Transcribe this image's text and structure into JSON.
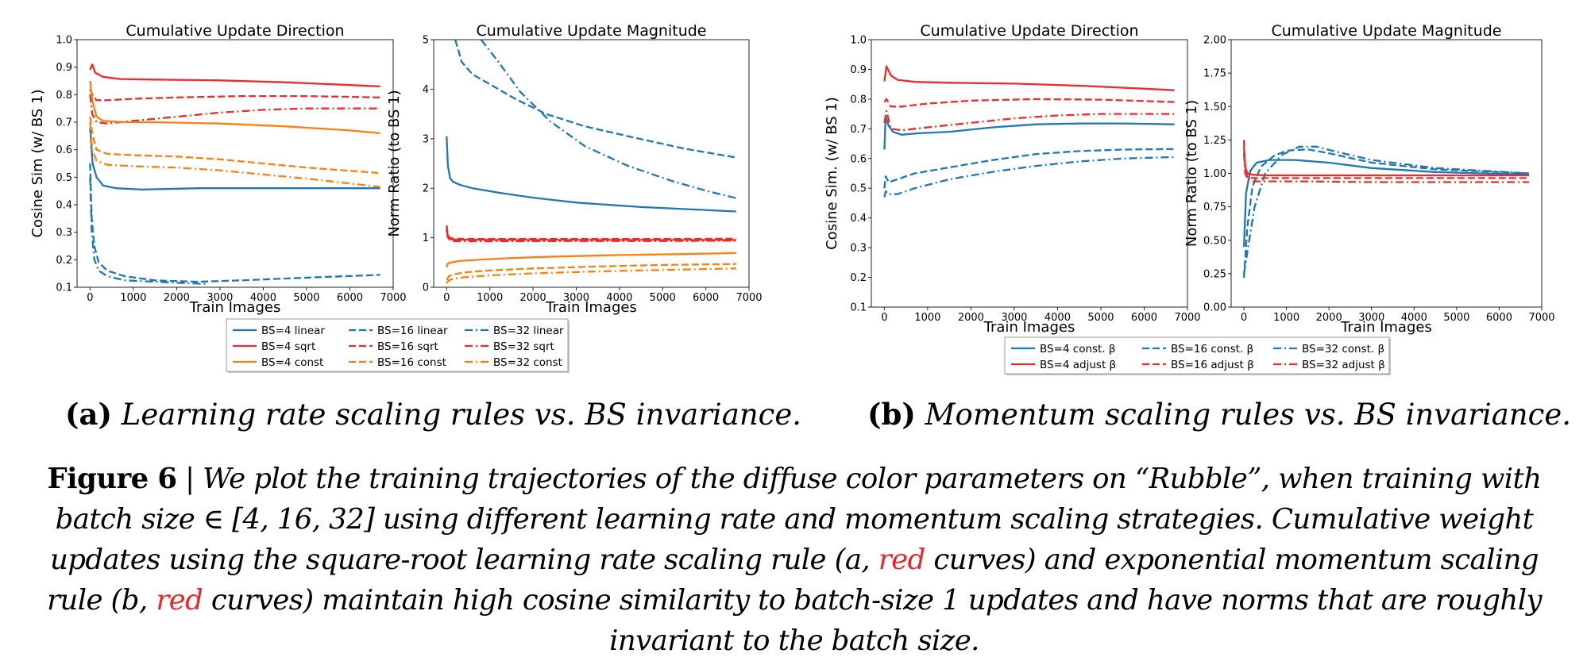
{
  "colors": {
    "blue": "#1f77b4",
    "red": "#ee2a2a",
    "orange": "#ff7f0e"
  },
  "chart_data": [
    {
      "id": "a1",
      "type": "line",
      "title": "Cumulative Update Direction",
      "xlabel": "Train Images",
      "ylabel": "Cosine Sim (w/ BS 1)",
      "xlim": [
        -300,
        7000
      ],
      "ylim": [
        0.1,
        1.0
      ],
      "xticks": [
        0,
        1000,
        2000,
        3000,
        4000,
        5000,
        6000,
        7000
      ],
      "yticks": [
        0.1,
        0.2,
        0.3,
        0.4,
        0.5,
        0.6,
        0.7,
        0.8,
        0.9,
        1.0
      ],
      "ytick_labels": [
        "0.1",
        "0.2",
        "0.3",
        "0.4",
        "0.5",
        "0.6",
        "0.7",
        "0.8",
        "0.9",
        "1.0"
      ],
      "series": [
        {
          "name": "BS=4 linear",
          "color": "blue",
          "dash": "solid",
          "x": [
            0,
            60,
            150,
            300,
            600,
            1200,
            2500,
            4000,
            5500,
            6700
          ],
          "y": [
            0.68,
            0.55,
            0.5,
            0.47,
            0.46,
            0.455,
            0.46,
            0.46,
            0.46,
            0.46
          ]
        },
        {
          "name": "BS=16 linear",
          "color": "blue",
          "dash": "dash",
          "x": [
            0,
            40,
            100,
            200,
            400,
            800,
            1500,
            2500,
            3500,
            5000,
            6700
          ],
          "y": [
            0.55,
            0.35,
            0.25,
            0.19,
            0.16,
            0.14,
            0.125,
            0.12,
            0.125,
            0.135,
            0.145
          ]
        },
        {
          "name": "BS=32 linear",
          "color": "blue",
          "dash": "dashdot",
          "x": [
            0,
            40,
            100,
            200,
            400,
            800,
            1500,
            2200,
            2700
          ],
          "y": [
            0.5,
            0.3,
            0.2,
            0.16,
            0.14,
            0.125,
            0.12,
            0.115,
            0.112
          ]
        },
        {
          "name": "BS=4 sqrt",
          "color": "red",
          "dash": "solid",
          "x": [
            0,
            50,
            120,
            300,
            700,
            1500,
            3000,
            4500,
            6000,
            6700
          ],
          "y": [
            0.89,
            0.91,
            0.88,
            0.865,
            0.857,
            0.855,
            0.852,
            0.845,
            0.835,
            0.83
          ]
        },
        {
          "name": "BS=16 sqrt",
          "color": "red",
          "dash": "dash",
          "x": [
            0,
            50,
            150,
            400,
            1000,
            2000,
            3500,
            5000,
            6700
          ],
          "y": [
            0.82,
            0.8,
            0.78,
            0.78,
            0.785,
            0.79,
            0.795,
            0.795,
            0.79
          ]
        },
        {
          "name": "BS=32 sqrt",
          "color": "red",
          "dash": "dashdot",
          "x": [
            0,
            50,
            150,
            400,
            1000,
            2000,
            3000,
            4000,
            5000,
            6700
          ],
          "y": [
            0.8,
            0.73,
            0.7,
            0.695,
            0.705,
            0.72,
            0.735,
            0.745,
            0.75,
            0.75
          ]
        },
        {
          "name": "BS=4 const",
          "color": "orange",
          "dash": "solid",
          "x": [
            0,
            50,
            150,
            300,
            800,
            1500,
            3000,
            4500,
            6000,
            6700
          ],
          "y": [
            0.85,
            0.78,
            0.72,
            0.705,
            0.7,
            0.7,
            0.695,
            0.685,
            0.67,
            0.66
          ]
        },
        {
          "name": "BS=16 const",
          "color": "orange",
          "dash": "dash",
          "x": [
            0,
            50,
            150,
            400,
            1000,
            2000,
            3000,
            4000,
            5000,
            6700
          ],
          "y": [
            0.72,
            0.66,
            0.6,
            0.585,
            0.58,
            0.575,
            0.565,
            0.55,
            0.535,
            0.515
          ]
        },
        {
          "name": "BS=32 const",
          "color": "orange",
          "dash": "dashdot",
          "x": [
            0,
            50,
            150,
            400,
            1000,
            2000,
            3000,
            4000,
            5000,
            6700
          ],
          "y": [
            0.7,
            0.6,
            0.56,
            0.545,
            0.54,
            0.535,
            0.525,
            0.51,
            0.495,
            0.465
          ]
        }
      ]
    },
    {
      "id": "a2",
      "type": "line",
      "title": "Cumulative Update Magnitude",
      "xlabel": "Train Images",
      "ylabel": "Norm Ratio (to BS 1)",
      "xlim": [
        -300,
        7000
      ],
      "ylim": [
        0,
        5
      ],
      "xticks": [
        0,
        1000,
        2000,
        3000,
        4000,
        5000,
        6000,
        7000
      ],
      "yticks": [
        0,
        1,
        2,
        3,
        4,
        5
      ],
      "ytick_labels": [
        "0",
        "1",
        "2",
        "3",
        "4",
        "5"
      ],
      "series": [
        {
          "name": "BS=4 linear",
          "color": "blue",
          "dash": "solid",
          "x": [
            0,
            30,
            80,
            150,
            300,
            600,
            1200,
            2000,
            3000,
            4500,
            6700
          ],
          "y": [
            3.05,
            2.45,
            2.2,
            2.13,
            2.07,
            2.0,
            1.91,
            1.81,
            1.71,
            1.62,
            1.53
          ]
        },
        {
          "name": "BS=16 linear",
          "color": "blue",
          "dash": "dash",
          "x": [
            200,
            350,
            600,
            1000,
            1600,
            2300,
            3200,
            4200,
            5500,
            6700
          ],
          "y": [
            5.0,
            4.55,
            4.3,
            4.1,
            3.8,
            3.5,
            3.25,
            3.05,
            2.8,
            2.62
          ]
        },
        {
          "name": "BS=32 linear",
          "color": "blue",
          "dash": "dashdot",
          "x": [
            800,
            1200,
            1700,
            2400,
            3200,
            4200,
            5200,
            6000,
            6700
          ],
          "y": [
            5.0,
            4.55,
            3.95,
            3.35,
            2.85,
            2.45,
            2.15,
            1.95,
            1.8
          ]
        },
        {
          "name": "BS=4 sqrt",
          "color": "red",
          "dash": "solid",
          "x": [
            0,
            30,
            80,
            200,
            500,
            1500,
            3000,
            5000,
            6700
          ],
          "y": [
            1.15,
            1.0,
            0.97,
            0.96,
            0.96,
            0.955,
            0.955,
            0.955,
            0.955
          ]
        },
        {
          "name": "BS=16 sqrt",
          "color": "red",
          "dash": "dash",
          "x": [
            0,
            30,
            80,
            200,
            500,
            1500,
            3000,
            5000,
            6700
          ],
          "y": [
            1.25,
            1.05,
            0.99,
            0.98,
            0.975,
            0.975,
            0.975,
            0.975,
            0.98
          ]
        },
        {
          "name": "BS=32 sqrt",
          "color": "red",
          "dash": "dashdot",
          "x": [
            0,
            30,
            80,
            200,
            500,
            1500,
            3000,
            5000,
            6700
          ],
          "y": [
            1.2,
            1.02,
            0.95,
            0.93,
            0.93,
            0.93,
            0.935,
            0.935,
            0.94
          ]
        },
        {
          "name": "BS=4 const",
          "color": "orange",
          "dash": "solid",
          "x": [
            0,
            30,
            100,
            300,
            800,
            1500,
            2500,
            4000,
            5500,
            6700
          ],
          "y": [
            0.4,
            0.48,
            0.5,
            0.53,
            0.56,
            0.59,
            0.62,
            0.65,
            0.67,
            0.69
          ]
        },
        {
          "name": "BS=16 const",
          "color": "orange",
          "dash": "dash",
          "x": [
            0,
            50,
            150,
            400,
            1000,
            2000,
            3500,
            5000,
            6700
          ],
          "y": [
            0.15,
            0.22,
            0.26,
            0.3,
            0.34,
            0.38,
            0.42,
            0.45,
            0.47
          ]
        },
        {
          "name": "BS=32 const",
          "color": "orange",
          "dash": "dashdot",
          "x": [
            0,
            50,
            150,
            400,
            1000,
            2000,
            3500,
            5000,
            6700
          ],
          "y": [
            0.08,
            0.14,
            0.17,
            0.2,
            0.24,
            0.28,
            0.32,
            0.35,
            0.38
          ]
        }
      ]
    },
    {
      "id": "b1",
      "type": "line",
      "title": "Cumulative Update Direction",
      "xlabel": "Train Images",
      "ylabel": "Cosine Sim. (w/ BS 1)",
      "xlim": [
        -300,
        7000
      ],
      "ylim": [
        0.1,
        1.0
      ],
      "xticks": [
        0,
        1000,
        2000,
        3000,
        4000,
        5000,
        6000,
        7000
      ],
      "yticks": [
        0.1,
        0.2,
        0.3,
        0.4,
        0.5,
        0.6,
        0.7,
        0.8,
        0.9,
        1.0
      ],
      "ytick_labels": [
        "0.1",
        "0.2",
        "0.3",
        "0.4",
        "0.5",
        "0.6",
        "0.7",
        "0.8",
        "0.9",
        "1.0"
      ],
      "series": [
        {
          "name": "BS=4 const. β",
          "color": "blue",
          "dash": "solid",
          "x": [
            0,
            30,
            100,
            200,
            400,
            800,
            1500,
            2500,
            3500,
            4500,
            5500,
            6700
          ],
          "y": [
            0.63,
            0.74,
            0.71,
            0.69,
            0.68,
            0.685,
            0.69,
            0.705,
            0.715,
            0.718,
            0.718,
            0.715
          ]
        },
        {
          "name": "BS=16 const. β",
          "color": "blue",
          "dash": "dash",
          "x": [
            0,
            30,
            100,
            300,
            700,
            1500,
            2500,
            3500,
            4500,
            5500,
            6700
          ],
          "y": [
            0.5,
            0.54,
            0.52,
            0.53,
            0.55,
            0.57,
            0.595,
            0.615,
            0.625,
            0.63,
            0.632
          ]
        },
        {
          "name": "BS=32 const. β",
          "color": "blue",
          "dash": "dashdot",
          "x": [
            0,
            30,
            100,
            300,
            700,
            1500,
            2500,
            3500,
            4500,
            5500,
            6700
          ],
          "y": [
            0.47,
            0.49,
            0.48,
            0.48,
            0.5,
            0.53,
            0.555,
            0.575,
            0.59,
            0.6,
            0.605
          ]
        },
        {
          "name": "BS=4 adjust β",
          "color": "red",
          "dash": "solid",
          "x": [
            0,
            50,
            150,
            300,
            700,
            1500,
            3000,
            4500,
            6000,
            6700
          ],
          "y": [
            0.86,
            0.91,
            0.88,
            0.865,
            0.858,
            0.855,
            0.852,
            0.845,
            0.835,
            0.83
          ]
        },
        {
          "name": "BS=16 adjust β",
          "color": "red",
          "dash": "dash",
          "x": [
            0,
            50,
            150,
            400,
            1000,
            2000,
            3500,
            5000,
            6700
          ],
          "y": [
            0.79,
            0.8,
            0.775,
            0.775,
            0.785,
            0.795,
            0.8,
            0.798,
            0.79
          ]
        },
        {
          "name": "BS=32 adjust β",
          "color": "red",
          "dash": "dashdot",
          "x": [
            0,
            50,
            150,
            400,
            1000,
            2000,
            3000,
            4000,
            5000,
            6700
          ],
          "y": [
            0.72,
            0.76,
            0.7,
            0.695,
            0.705,
            0.72,
            0.735,
            0.745,
            0.75,
            0.75
          ]
        }
      ]
    },
    {
      "id": "b2",
      "type": "line",
      "title": "Cumulative Update Magnitude",
      "xlabel": "Train Images",
      "ylabel": "Norm Ratio (to BS 1)",
      "xlim": [
        -300,
        7000
      ],
      "ylim": [
        0,
        2
      ],
      "xticks": [
        0,
        1000,
        2000,
        3000,
        4000,
        5000,
        6000,
        7000
      ],
      "yticks": [
        0,
        0.25,
        0.5,
        0.75,
        1.0,
        1.25,
        1.5,
        1.75,
        2.0
      ],
      "ytick_labels": [
        "0.00",
        "0.25",
        "0.50",
        "0.75",
        "1.00",
        "1.25",
        "1.50",
        "1.75",
        "2.00"
      ],
      "series": [
        {
          "name": "BS=4 const. β",
          "color": "blue",
          "dash": "solid",
          "x": [
            0,
            50,
            150,
            300,
            600,
            1200,
            2000,
            3000,
            4500,
            6700
          ],
          "y": [
            0.45,
            0.85,
            1.02,
            1.08,
            1.1,
            1.1,
            1.08,
            1.04,
            1.01,
            0.99
          ]
        },
        {
          "name": "BS=16 const. β",
          "color": "blue",
          "dash": "dash",
          "x": [
            0,
            80,
            200,
            400,
            700,
            1000,
            1500,
            2000,
            3000,
            4500,
            6700
          ],
          "y": [
            0.22,
            0.6,
            0.9,
            1.05,
            1.13,
            1.17,
            1.18,
            1.15,
            1.08,
            1.03,
            1.0
          ]
        },
        {
          "name": "BS=32 const. β",
          "color": "blue",
          "dash": "dashdot",
          "x": [
            0,
            100,
            250,
            500,
            900,
            1300,
            1700,
            2200,
            3000,
            4500,
            6700
          ],
          "y": [
            0.25,
            0.45,
            0.75,
            1.0,
            1.14,
            1.2,
            1.2,
            1.16,
            1.1,
            1.04,
            1.0
          ]
        },
        {
          "name": "BS=4 adjust β",
          "color": "red",
          "dash": "solid",
          "x": [
            0,
            30,
            80,
            200,
            500,
            1500,
            3000,
            5000,
            6700
          ],
          "y": [
            1.2,
            1.05,
            1.0,
            0.99,
            0.985,
            0.985,
            0.985,
            0.985,
            0.985
          ]
        },
        {
          "name": "BS=16 adjust β",
          "color": "red",
          "dash": "dash",
          "x": [
            0,
            30,
            80,
            200,
            500,
            1500,
            3000,
            5000,
            6700
          ],
          "y": [
            1.25,
            1.03,
            0.97,
            0.965,
            0.965,
            0.965,
            0.965,
            0.965,
            0.965
          ]
        },
        {
          "name": "BS=32 adjust β",
          "color": "red",
          "dash": "dashdot",
          "x": [
            0,
            30,
            80,
            200,
            500,
            1500,
            3000,
            5000,
            6700
          ],
          "y": [
            1.15,
            1.0,
            0.96,
            0.94,
            0.94,
            0.94,
            0.935,
            0.935,
            0.935
          ]
        }
      ]
    }
  ],
  "legends": {
    "a": [
      [
        "BS=4 linear",
        "BS=16 linear",
        "BS=32 linear"
      ],
      [
        "BS=4 sqrt",
        "BS=16 sqrt",
        "BS=32 sqrt"
      ],
      [
        "BS=4 const",
        "BS=16 const",
        "BS=32 const"
      ]
    ],
    "b": [
      [
        "BS=4 const. β",
        "BS=16 const. β",
        "BS=32 const. β"
      ],
      [
        "BS=4 adjust β",
        "BS=16 adjust β",
        "BS=32 adjust β"
      ]
    ]
  },
  "subcaptions": {
    "a": {
      "label": "(a)",
      "text": "Learning rate scaling rules vs. BS invariance."
    },
    "b": {
      "label": "(b)",
      "text": "Momentum scaling rules vs. BS invariance."
    }
  },
  "caption": {
    "label": "Figure 6",
    "separator": "|",
    "part1": "We plot the training trajectories of the diffuse color parameters on “Rubble”, when training with batch size ∈ [4, 16, 32] using different learning rate and momentum scaling strategies. Cumulative weight updates using the square-root learning rate scaling rule (a,",
    "red1": "red",
    "part2": "curves) and exponential momentum scaling rule (b,",
    "red2": "red",
    "part3": "curves) maintain high cosine similarity to batch-size 1 updates and have norms that are roughly invariant to the batch size."
  }
}
